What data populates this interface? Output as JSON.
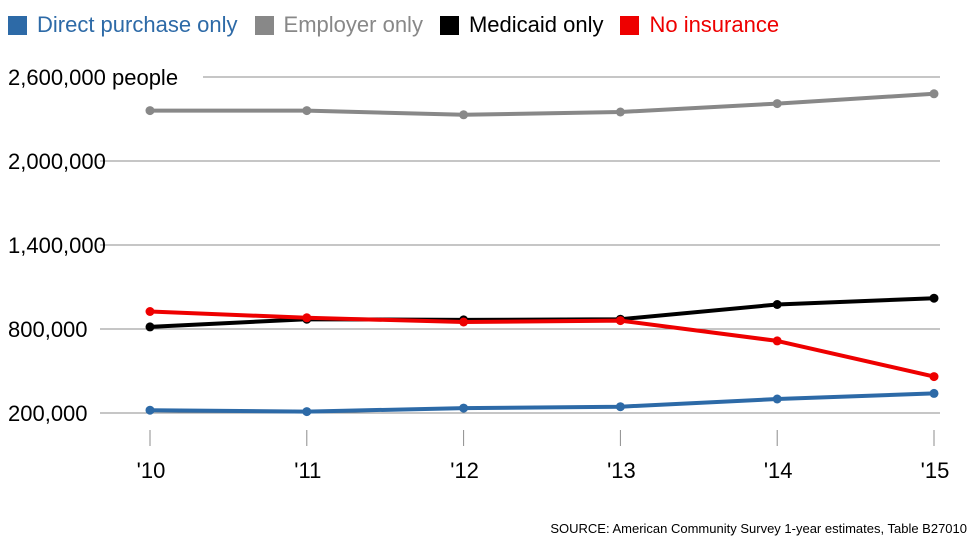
{
  "chart_data": {
    "type": "line",
    "x": [
      "'10",
      "'11",
      "'12",
      "'13",
      "'14",
      "'15"
    ],
    "y_ticks": [
      "2,600,000 people",
      "2,000,000",
      "1,400,000",
      "800,000",
      "200,000"
    ],
    "y_tick_values": [
      2600000,
      2000000,
      1400000,
      800000,
      200000
    ],
    "ylim": [
      200000,
      2600000
    ],
    "grid": true,
    "legend_position": "top-left",
    "series": [
      {
        "name": "Direct purchase only",
        "color": "#2d6aa7",
        "values": [
          220000,
          210000,
          235000,
          245000,
          300000,
          340000
        ]
      },
      {
        "name": "Employer only",
        "color": "#888888",
        "values": [
          2360000,
          2360000,
          2330000,
          2350000,
          2410000,
          2480000
        ]
      },
      {
        "name": "Medicaid only",
        "color": "#000000",
        "values": [
          815000,
          870000,
          865000,
          870000,
          975000,
          1020000
        ]
      },
      {
        "name": "No insurance",
        "color": "#ee0000",
        "values": [
          925000,
          880000,
          850000,
          860000,
          715000,
          460000
        ]
      }
    ],
    "source": "SOURCE: American Community Survey 1-year estimates, Table B27010"
  }
}
